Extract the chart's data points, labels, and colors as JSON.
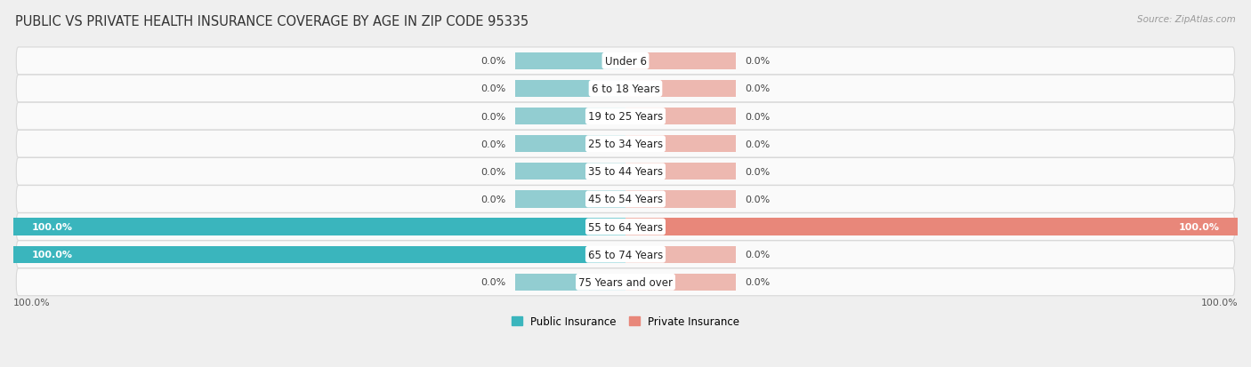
{
  "title": "PUBLIC VS PRIVATE HEALTH INSURANCE COVERAGE BY AGE IN ZIP CODE 95335",
  "source": "Source: ZipAtlas.com",
  "categories": [
    "Under 6",
    "6 to 18 Years",
    "19 to 25 Years",
    "25 to 34 Years",
    "35 to 44 Years",
    "45 to 54 Years",
    "55 to 64 Years",
    "65 to 74 Years",
    "75 Years and over"
  ],
  "public_values": [
    0.0,
    0.0,
    0.0,
    0.0,
    0.0,
    0.0,
    100.0,
    100.0,
    0.0
  ],
  "private_values": [
    0.0,
    0.0,
    0.0,
    0.0,
    0.0,
    0.0,
    100.0,
    0.0,
    0.0
  ],
  "public_color": "#3ab5bd",
  "private_color": "#e8877a",
  "public_color_light": "#92cdd1",
  "private_color_light": "#edb8b0",
  "bg_color": "#efefef",
  "row_bg": "#fafafa",
  "bar_height": 0.62,
  "stub_size": 18,
  "xlim_left": -100,
  "xlim_right": 100,
  "legend_public": "Public Insurance",
  "legend_private": "Private Insurance",
  "title_fontsize": 10.5,
  "label_fontsize": 8.0,
  "category_fontsize": 8.5,
  "source_fontsize": 7.5
}
